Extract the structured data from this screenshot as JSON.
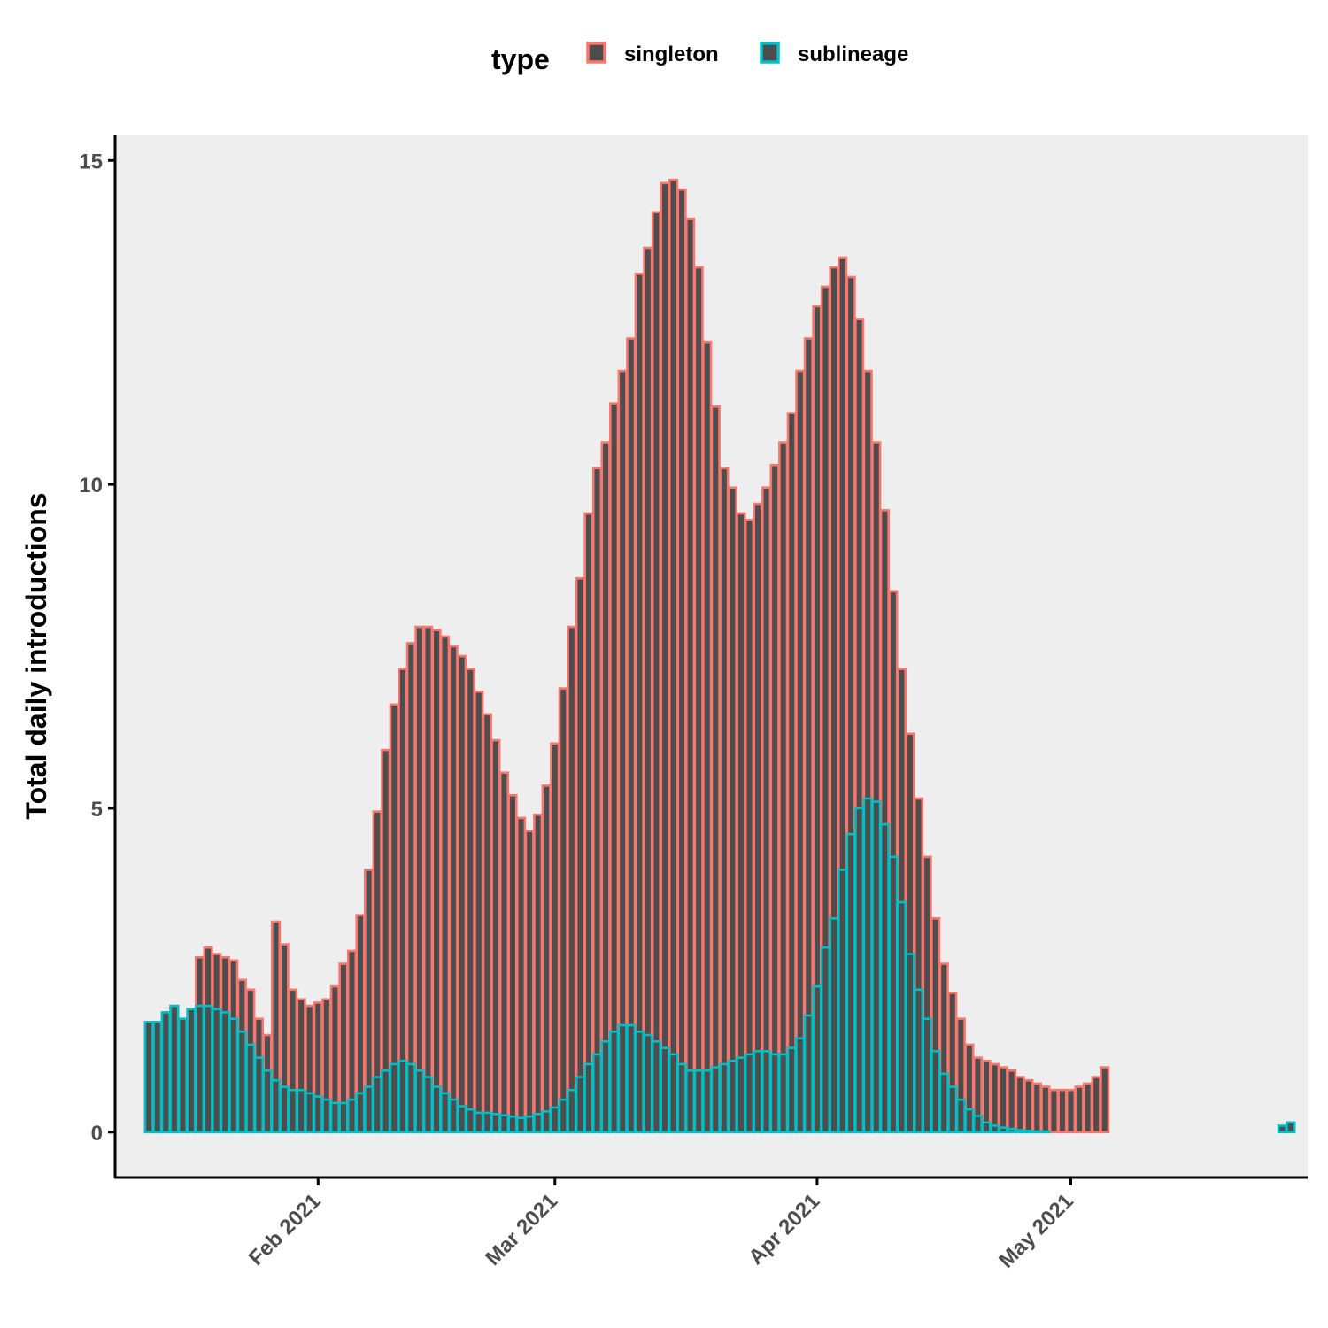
{
  "chart_data": {
    "type": "bar",
    "stacked": false,
    "xlabel": "",
    "ylabel": "Total daily introductions",
    "x_start_date": "2021-01-12",
    "x_end_date": "2021-05-25",
    "xlim": [
      "2021-01-08",
      "2021-05-29"
    ],
    "ylim": [
      -0.7,
      15.4
    ],
    "y_ticks": [
      0,
      5,
      10,
      15
    ],
    "y_tick_labels": [
      "0",
      "5",
      "10",
      "15"
    ],
    "x_ticks": [
      "2021-02-01",
      "2021-03-01",
      "2021-04-01",
      "2021-05-01"
    ],
    "x_tick_labels": [
      "Feb 2021",
      "Mar 2021",
      "Apr 2021",
      "May 2021"
    ],
    "grid": false,
    "panel_background": "#ebebeb",
    "bar_fill": "#4d4d4d",
    "legend": {
      "title": "type",
      "position": "top",
      "entries": [
        "singleton",
        "sublineage"
      ]
    },
    "series": [
      {
        "name": "singleton",
        "color": "#f8766d",
        "values": [
          1.7,
          1.7,
          1.85,
          1.95,
          1.75,
          1.9,
          2.7,
          2.85,
          2.75,
          2.7,
          2.65,
          2.35,
          2.2,
          1.75,
          1.5,
          3.25,
          2.9,
          2.2,
          2.05,
          1.95,
          2.0,
          2.05,
          2.25,
          2.6,
          2.8,
          3.35,
          4.05,
          4.95,
          5.9,
          6.6,
          7.15,
          7.55,
          7.8,
          7.8,
          7.75,
          7.65,
          7.5,
          7.35,
          7.15,
          6.8,
          6.45,
          6.05,
          5.55,
          5.2,
          4.85,
          4.65,
          4.9,
          5.35,
          6.0,
          6.85,
          7.8,
          8.55,
          9.55,
          10.25,
          10.65,
          11.25,
          11.75,
          12.25,
          13.25,
          13.65,
          14.2,
          14.65,
          14.7,
          14.55,
          14.1,
          13.35,
          12.2,
          11.2,
          10.25,
          9.95,
          9.55,
          9.45,
          9.7,
          9.95,
          10.3,
          10.65,
          11.1,
          11.75,
          12.25,
          12.75,
          13.05,
          13.35,
          13.5,
          13.2,
          12.55,
          11.75,
          10.65,
          9.6,
          8.35,
          7.15,
          6.15,
          5.15,
          4.25,
          3.3,
          2.6,
          2.15,
          1.75,
          1.35,
          1.15,
          1.1,
          1.05,
          1.0,
          0.95,
          0.85,
          0.8,
          0.75,
          0.7,
          0.65,
          0.65,
          0.65,
          0.7,
          0.75,
          0.85,
          1.0,
          0,
          0,
          0,
          0,
          0,
          0,
          0,
          0,
          0,
          0,
          0,
          0,
          0,
          0,
          0,
          0,
          0,
          0,
          0,
          0,
          0,
          0,
          0,
          0
        ]
      },
      {
        "name": "sublineage",
        "color": "#00bfc4",
        "values": [
          1.7,
          1.7,
          1.85,
          1.95,
          1.75,
          1.9,
          1.95,
          1.95,
          1.9,
          1.85,
          1.75,
          1.55,
          1.35,
          1.15,
          0.95,
          0.8,
          0.7,
          0.65,
          0.65,
          0.6,
          0.55,
          0.5,
          0.45,
          0.45,
          0.5,
          0.6,
          0.7,
          0.85,
          0.95,
          1.05,
          1.1,
          1.05,
          0.95,
          0.85,
          0.7,
          0.6,
          0.5,
          0.4,
          0.35,
          0.3,
          0.3,
          0.28,
          0.26,
          0.24,
          0.22,
          0.24,
          0.28,
          0.32,
          0.38,
          0.5,
          0.65,
          0.85,
          1.05,
          1.2,
          1.4,
          1.55,
          1.65,
          1.65,
          1.55,
          1.5,
          1.4,
          1.3,
          1.2,
          1.05,
          0.95,
          0.95,
          0.95,
          1.0,
          1.05,
          1.1,
          1.15,
          1.2,
          1.25,
          1.25,
          1.2,
          1.2,
          1.3,
          1.45,
          1.8,
          2.25,
          2.85,
          3.3,
          4.05,
          4.6,
          5.0,
          5.15,
          5.1,
          4.75,
          4.25,
          3.55,
          2.75,
          2.2,
          1.75,
          1.25,
          0.9,
          0.7,
          0.5,
          0.35,
          0.25,
          0.15,
          0.1,
          0.07,
          0.05,
          0.03,
          0.02,
          0.01,
          0.01,
          0,
          0,
          0,
          0,
          0,
          0,
          0,
          0,
          0,
          0,
          0,
          0,
          0,
          0,
          0,
          0,
          0,
          0,
          0,
          0,
          0,
          0,
          0,
          0,
          0,
          0,
          0,
          0.1,
          0.15,
          0
        ]
      }
    ]
  }
}
